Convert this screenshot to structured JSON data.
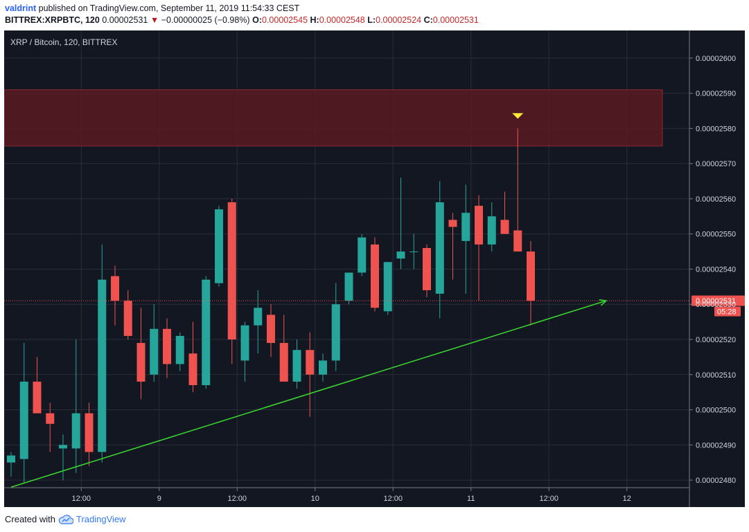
{
  "header": {
    "author": "valdrint",
    "published": "published on TradingView.com, September 11, 2019 11:54:33 CEST",
    "symbol": "BITTREX:XRPBTC, 120",
    "last": "0.00002531",
    "change": "−0.00000025 (−0.98%)",
    "o_label": "O:",
    "o_val": "0.00002545",
    "h_label": "H:",
    "h_val": "0.00002548",
    "l_label": "L:",
    "l_val": "0.00002524",
    "c_label": "C:",
    "c_val": "0.00002531"
  },
  "legend": "XRP / Bitcoin, 120, BITTREX",
  "footer": {
    "created_with": "Created with",
    "brand": "TradingView"
  },
  "colors": {
    "bg": "#131722",
    "grid": "#2a2e39",
    "up": "#26a69a",
    "down": "#ef5350",
    "zone_fill": "#5a1a22",
    "zone_border": "#8a2a33",
    "trend": "#39d22e",
    "marker": "#ffeb3b",
    "axis_text": "#d1d4dc",
    "price_tag": "#ef5350"
  },
  "chart_data": {
    "type": "candlestick",
    "ylim": [
      2.47785e-05,
      2.60785e-05
    ],
    "y_ticks": [
      "0.00002480",
      "0.00002490",
      "0.00002500",
      "0.00002510",
      "0.00002520",
      "0.00002530",
      "0.00002540",
      "0.00002550",
      "0.00002560",
      "0.00002570",
      "0.00002580",
      "0.00002590",
      "0.00002600"
    ],
    "x_ticks": [
      "12:00",
      "9",
      "12:00",
      "10",
      "12:00",
      "11",
      "12:00",
      "12"
    ],
    "current_price": "0.00002531",
    "countdown": "05:28",
    "resistance_zone": [
      2.575e-05,
      2.591e-05
    ],
    "candles": [
      {
        "o": 2.485e-05,
        "h": 2.488e-05,
        "l": 2.481e-05,
        "c": 2.487e-05
      },
      {
        "o": 2.486e-05,
        "h": 2.519e-05,
        "l": 2.479e-05,
        "c": 2.508e-05
      },
      {
        "o": 2.508e-05,
        "h": 2.515e-05,
        "l": 2.499e-05,
        "c": 2.499e-05
      },
      {
        "o": 2.499e-05,
        "h": 2.502e-05,
        "l": 2.488e-05,
        "c": 2.496e-05
      },
      {
        "o": 2.489e-05,
        "h": 2.493e-05,
        "l": 2.48e-05,
        "c": 2.49e-05
      },
      {
        "o": 2.489e-05,
        "h": 2.52e-05,
        "l": 2.482e-05,
        "c": 2.499e-05
      },
      {
        "o": 2.499e-05,
        "h": 2.502e-05,
        "l": 2.484e-05,
        "c": 2.488e-05
      },
      {
        "o": 2.488e-05,
        "h": 2.547e-05,
        "l": 2.485e-05,
        "c": 2.537e-05
      },
      {
        "o": 2.538e-05,
        "h": 2.541e-05,
        "l": 2.524e-05,
        "c": 2.531e-05
      },
      {
        "o": 2.531e-05,
        "h": 2.534e-05,
        "l": 2.52e-05,
        "c": 2.521e-05
      },
      {
        "o": 2.519e-05,
        "h": 2.529e-05,
        "l": 2.503e-05,
        "c": 2.508e-05
      },
      {
        "o": 2.51e-05,
        "h": 2.53e-05,
        "l": 2.508e-05,
        "c": 2.523e-05
      },
      {
        "o": 2.523e-05,
        "h": 2.526e-05,
        "l": 2.509e-05,
        "c": 2.513e-05
      },
      {
        "o": 2.513e-05,
        "h": 2.522e-05,
        "l": 2.511e-05,
        "c": 2.521e-05
      },
      {
        "o": 2.516e-05,
        "h": 2.525e-05,
        "l": 2.505e-05,
        "c": 2.507e-05
      },
      {
        "o": 2.507e-05,
        "h": 2.538e-05,
        "l": 2.506e-05,
        "c": 2.537e-05
      },
      {
        "o": 2.536e-05,
        "h": 2.558e-05,
        "l": 2.535e-05,
        "c": 2.557e-05
      },
      {
        "o": 2.559e-05,
        "h": 2.56e-05,
        "l": 2.513e-05,
        "c": 2.52e-05
      },
      {
        "o": 2.514e-05,
        "h": 2.525e-05,
        "l": 2.508e-05,
        "c": 2.524e-05
      },
      {
        "o": 2.524e-05,
        "h": 2.534e-05,
        "l": 2.516e-05,
        "c": 2.529e-05
      },
      {
        "o": 2.527e-05,
        "h": 2.53e-05,
        "l": 2.515e-05,
        "c": 2.519e-05
      },
      {
        "o": 2.519e-05,
        "h": 2.527e-05,
        "l": 2.508e-05,
        "c": 2.508e-05
      },
      {
        "o": 2.508e-05,
        "h": 2.52e-05,
        "l": 2.506e-05,
        "c": 2.517e-05
      },
      {
        "o": 2.517e-05,
        "h": 2.522e-05,
        "l": 2.498e-05,
        "c": 2.51e-05
      },
      {
        "o": 2.51e-05,
        "h": 2.516e-05,
        "l": 2.508e-05,
        "c": 2.514e-05
      },
      {
        "o": 2.514e-05,
        "h": 2.536e-05,
        "l": 2.511e-05,
        "c": 2.53e-05
      },
      {
        "o": 2.531e-05,
        "h": 2.539e-05,
        "l": 2.53e-05,
        "c": 2.539e-05
      },
      {
        "o": 2.539e-05,
        "h": 2.55e-05,
        "l": 2.538e-05,
        "c": 2.549e-05
      },
      {
        "o": 2.547e-05,
        "h": 2.549e-05,
        "l": 2.528e-05,
        "c": 2.529e-05
      },
      {
        "o": 2.528e-05,
        "h": 2.542e-05,
        "l": 2.527e-05,
        "c": 2.542e-05
      },
      {
        "o": 2.543e-05,
        "h": 2.566e-05,
        "l": 2.54e-05,
        "c": 2.545e-05
      },
      {
        "o": 2.545e-05,
        "h": 2.55e-05,
        "l": 2.54e-05,
        "c": 2.545e-05
      },
      {
        "o": 2.546e-05,
        "h": 2.547e-05,
        "l": 2.532e-05,
        "c": 2.534e-05
      },
      {
        "o": 2.533e-05,
        "h": 2.565e-05,
        "l": 2.526e-05,
        "c": 2.559e-05
      },
      {
        "o": 2.554e-05,
        "h": 2.556e-05,
        "l": 2.537e-05,
        "c": 2.552e-05
      },
      {
        "o": 2.548e-05,
        "h": 2.564e-05,
        "l": 2.533e-05,
        "c": 2.556e-05
      },
      {
        "o": 2.558e-05,
        "h": 2.561e-05,
        "l": 2.531e-05,
        "c": 2.547e-05
      },
      {
        "o": 2.547e-05,
        "h": 2.559e-05,
        "l": 2.545e-05,
        "c": 2.555e-05
      },
      {
        "o": 2.554e-05,
        "h": 2.562e-05,
        "l": 2.55e-05,
        "c": 2.55e-05
      },
      {
        "o": 2.551e-05,
        "h": 2.58e-05,
        "l": 2.545e-05,
        "c": 2.545e-05
      },
      {
        "o": 2.545e-05,
        "h": 2.548e-05,
        "l": 2.524e-05,
        "c": 2.531e-05
      }
    ],
    "trendline": {
      "from": [
        0,
        2.478e-05
      ],
      "to": [
        45.8,
        2.531e-05
      ]
    }
  }
}
